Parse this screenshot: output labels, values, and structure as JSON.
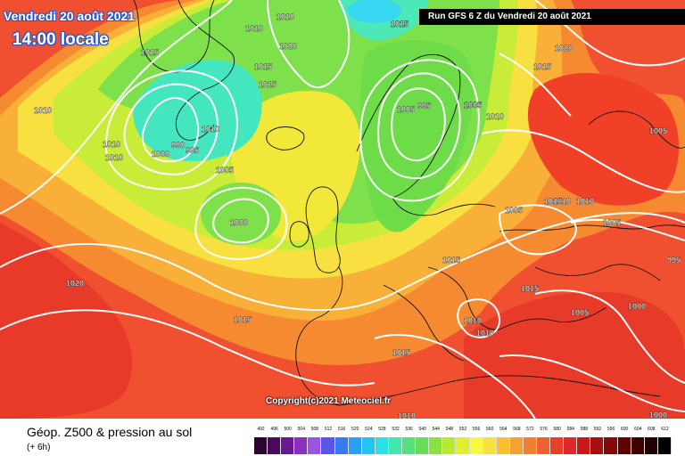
{
  "header": {
    "date_title": "Vendredi 20 août 2021",
    "time_title": "14:00 locale",
    "run_label": "Run GFS 6 Z du Vendredi 20 août 2021"
  },
  "copyright": "Copyright(c)2021 Meteociel.fr",
  "footer": {
    "title": "Géop. Z500 & pression au sol",
    "subtitle": "(+ 6h)"
  },
  "scale": {
    "labels": [
      "492",
      "496",
      "500",
      "504",
      "508",
      "512",
      "516",
      "520",
      "524",
      "528",
      "532",
      "536",
      "540",
      "544",
      "548",
      "552",
      "556",
      "560",
      "564",
      "568",
      "572",
      "576",
      "580",
      "584",
      "588",
      "592",
      "596",
      "600",
      "604",
      "608",
      "612"
    ],
    "colors": [
      "#2b0530",
      "#4a0a5c",
      "#6a1890",
      "#8a2fc0",
      "#9a55e0",
      "#5a55e8",
      "#3a7af0",
      "#2aa0f5",
      "#22c3f5",
      "#2ae0e0",
      "#40e8b0",
      "#55e080",
      "#66dd55",
      "#8ae040",
      "#b8e830",
      "#e0f030",
      "#f8f840",
      "#f8e040",
      "#f8c030",
      "#f8a030",
      "#f08030",
      "#f06030",
      "#e84028",
      "#e02828",
      "#c81818",
      "#a81010",
      "#880808",
      "#600000",
      "#400000",
      "#200000",
      "#000000"
    ]
  },
  "isobar_labels": [
    {
      "text": "1010"
    },
    {
      "text": "1015"
    },
    {
      "text": "1010"
    },
    {
      "text": "1020"
    },
    {
      "text": "1015"
    },
    {
      "text": "1015"
    },
    {
      "text": "1005"
    },
    {
      "text": "995"
    },
    {
      "text": "1005"
    },
    {
      "text": "1010"
    },
    {
      "text": "1020"
    },
    {
      "text": "1015"
    },
    {
      "text": "1010"
    },
    {
      "text": "1010"
    },
    {
      "text": "1010"
    },
    {
      "text": "1000"
    },
    {
      "text": "990"
    },
    {
      "text": "995"
    },
    {
      "text": "1010"
    },
    {
      "text": "1005"
    },
    {
      "text": "1000"
    },
    {
      "text": "1005"
    },
    {
      "text": "1005"
    },
    {
      "text": "1010"
    },
    {
      "text": "1010"
    },
    {
      "text": "1015"
    },
    {
      "text": "1005"
    },
    {
      "text": "995"
    },
    {
      "text": "1020"
    },
    {
      "text": "1015"
    },
    {
      "text": "1015"
    },
    {
      "text": "1010"
    },
    {
      "text": "1010"
    },
    {
      "text": "1005"
    },
    {
      "text": "1000"
    },
    {
      "text": "1015"
    },
    {
      "text": "1010"
    },
    {
      "text": "1000"
    },
    {
      "text": "1005"
    },
    {
      "text": "1015"
    },
    {
      "text": "1015"
    },
    {
      "text": "1005"
    }
  ]
}
